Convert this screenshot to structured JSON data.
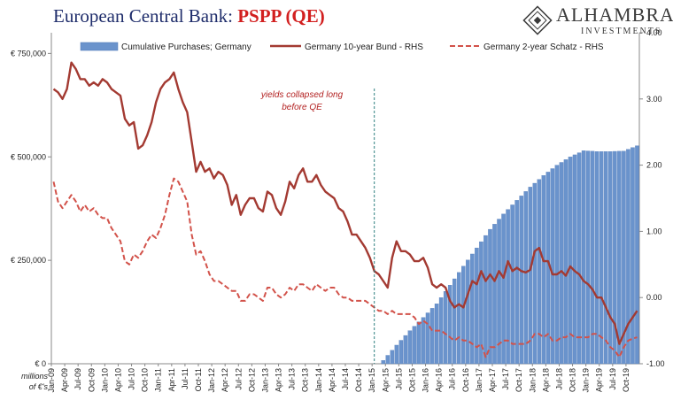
{
  "header": {
    "title_main": "European Central Bank: ",
    "title_accent": "PSPP (QE)",
    "brand_name": "ALHAMBRA",
    "brand_sub": "INVESTMENTS"
  },
  "colors": {
    "bars": "#6a93cc",
    "bars_edge": "#4f79b8",
    "bund": "#a33a32",
    "schatz": "#d2524a",
    "title": "#1f2d6b",
    "accent": "#d21f1f"
  },
  "chart_data": {
    "type": "bar+line",
    "title": "European Central Bank: PSPP (QE)",
    "left_axis": {
      "ticks": [
        {
          "value": 0,
          "label": "€ 0"
        },
        {
          "value": 250000,
          "label": "€ 250,000"
        },
        {
          "value": 500000,
          "label": "€ 500,000"
        },
        {
          "value": 750000,
          "label": "€ 750,000"
        }
      ],
      "ylim": [
        0,
        800000
      ],
      "unit_label": "millions of €'s"
    },
    "right_axis": {
      "ticks": [
        {
          "value": -1.0,
          "label": "-1.00"
        },
        {
          "value": 0.0,
          "label": "0.00"
        },
        {
          "value": 1.0,
          "label": "1.00"
        },
        {
          "value": 2.0,
          "label": "2.00"
        },
        {
          "value": 3.0,
          "label": "3.00"
        },
        {
          "value": 4.0,
          "label": "4.00"
        }
      ],
      "ylim": [
        -1.0,
        4.0
      ]
    },
    "x_axis": {
      "start": "2009-01",
      "end": "2019-12",
      "tick_labels": [
        "Jan-09",
        "Apr-09",
        "Jul-09",
        "Oct-09",
        "Jan-10",
        "Apr-10",
        "Jul-10",
        "Oct-10",
        "Jan-11",
        "Apr-11",
        "Jul-11",
        "Oct-11",
        "Jan-12",
        "Apr-12",
        "Jul-12",
        "Oct-12",
        "Jan-13",
        "Apr-13",
        "Jul-13",
        "Oct-13",
        "Jan-14",
        "Apr-14",
        "Jul-14",
        "Oct-14",
        "Jan-15",
        "Apr-15",
        "Jul-15",
        "Oct-15",
        "Jan-16",
        "Apr-16",
        "Jul-16",
        "Oct-16",
        "Jan-17",
        "Apr-17",
        "Jul-17",
        "Oct-17",
        "Jan-18",
        "Apr-18",
        "Jul-18",
        "Oct-18",
        "Jan-19",
        "Apr-19",
        "Jul-19",
        "Oct-19"
      ]
    },
    "legend": {
      "placement": "top",
      "entries": [
        {
          "label": "Cumulative Purchases; Germany",
          "kind": "bar"
        },
        {
          "label": "Germany 10-year Bund - RHS",
          "kind": "line"
        },
        {
          "label": "Germany 2-year Schatz - RHS",
          "kind": "dashed"
        }
      ]
    },
    "annotation": {
      "lines": [
        "yields collapsed long",
        "before QE"
      ],
      "date": "2015-03"
    },
    "cumulative_purchases": {
      "name": "Cumulative Purchases; Germany",
      "axis": "left",
      "points": [
        [
          "2015-03",
          8000
        ],
        [
          "2015-06",
          45000
        ],
        [
          "2015-09",
          80000
        ],
        [
          "2015-12",
          112000
        ],
        [
          "2016-03",
          145000
        ],
        [
          "2016-06",
          190000
        ],
        [
          "2016-09",
          236000
        ],
        [
          "2016-12",
          280000
        ],
        [
          "2017-03",
          325000
        ],
        [
          "2017-06",
          362000
        ],
        [
          "2017-09",
          395000
        ],
        [
          "2017-12",
          427000
        ],
        [
          "2018-03",
          455000
        ],
        [
          "2018-06",
          480000
        ],
        [
          "2018-09",
          500000
        ],
        [
          "2018-12",
          515000
        ],
        [
          "2019-03",
          513000
        ],
        [
          "2019-06",
          513000
        ],
        [
          "2019-09",
          514000
        ],
        [
          "2019-12",
          527000
        ]
      ]
    },
    "bund_10y": {
      "name": "Germany 10-year Bund - RHS",
      "axis": "right",
      "points": [
        [
          "2009-01",
          3.15
        ],
        [
          "2009-02",
          3.1
        ],
        [
          "2009-03",
          3.0
        ],
        [
          "2009-04",
          3.15
        ],
        [
          "2009-05",
          3.55
        ],
        [
          "2009-06",
          3.45
        ],
        [
          "2009-07",
          3.3
        ],
        [
          "2009-08",
          3.3
        ],
        [
          "2009-09",
          3.2
        ],
        [
          "2009-10",
          3.25
        ],
        [
          "2009-11",
          3.2
        ],
        [
          "2009-12",
          3.3
        ],
        [
          "2010-01",
          3.25
        ],
        [
          "2010-02",
          3.15
        ],
        [
          "2010-03",
          3.1
        ],
        [
          "2010-04",
          3.05
        ],
        [
          "2010-05",
          2.7
        ],
        [
          "2010-06",
          2.6
        ],
        [
          "2010-07",
          2.65
        ],
        [
          "2010-08",
          2.25
        ],
        [
          "2010-09",
          2.3
        ],
        [
          "2010-10",
          2.45
        ],
        [
          "2010-11",
          2.65
        ],
        [
          "2010-12",
          2.95
        ],
        [
          "2011-01",
          3.15
        ],
        [
          "2011-02",
          3.25
        ],
        [
          "2011-03",
          3.3
        ],
        [
          "2011-04",
          3.4
        ],
        [
          "2011-05",
          3.15
        ],
        [
          "2011-06",
          2.95
        ],
        [
          "2011-07",
          2.8
        ],
        [
          "2011-08",
          2.35
        ],
        [
          "2011-09",
          1.9
        ],
        [
          "2011-10",
          2.05
        ],
        [
          "2011-11",
          1.9
        ],
        [
          "2011-12",
          1.95
        ],
        [
          "2012-01",
          1.8
        ],
        [
          "2012-02",
          1.9
        ],
        [
          "2012-03",
          1.85
        ],
        [
          "2012-04",
          1.7
        ],
        [
          "2012-05",
          1.4
        ],
        [
          "2012-06",
          1.55
        ],
        [
          "2012-07",
          1.25
        ],
        [
          "2012-08",
          1.4
        ],
        [
          "2012-09",
          1.5
        ],
        [
          "2012-10",
          1.5
        ],
        [
          "2012-11",
          1.35
        ],
        [
          "2012-12",
          1.3
        ],
        [
          "2013-01",
          1.6
        ],
        [
          "2013-02",
          1.55
        ],
        [
          "2013-03",
          1.35
        ],
        [
          "2013-04",
          1.25
        ],
        [
          "2013-05",
          1.45
        ],
        [
          "2013-06",
          1.75
        ],
        [
          "2013-07",
          1.65
        ],
        [
          "2013-08",
          1.85
        ],
        [
          "2013-09",
          1.95
        ],
        [
          "2013-10",
          1.75
        ],
        [
          "2013-11",
          1.75
        ],
        [
          "2013-12",
          1.85
        ],
        [
          "2014-01",
          1.7
        ],
        [
          "2014-02",
          1.6
        ],
        [
          "2014-03",
          1.55
        ],
        [
          "2014-04",
          1.5
        ],
        [
          "2014-05",
          1.35
        ],
        [
          "2014-06",
          1.3
        ],
        [
          "2014-07",
          1.15
        ],
        [
          "2014-08",
          0.95
        ],
        [
          "2014-09",
          0.95
        ],
        [
          "2014-10",
          0.85
        ],
        [
          "2014-11",
          0.75
        ],
        [
          "2014-12",
          0.6
        ],
        [
          "2015-01",
          0.4
        ],
        [
          "2015-02",
          0.35
        ],
        [
          "2015-03",
          0.25
        ],
        [
          "2015-04",
          0.15
        ],
        [
          "2015-05",
          0.6
        ],
        [
          "2015-06",
          0.85
        ],
        [
          "2015-07",
          0.7
        ],
        [
          "2015-08",
          0.7
        ],
        [
          "2015-09",
          0.65
        ],
        [
          "2015-10",
          0.55
        ],
        [
          "2015-11",
          0.55
        ],
        [
          "2015-12",
          0.6
        ],
        [
          "2016-01",
          0.45
        ],
        [
          "2016-02",
          0.2
        ],
        [
          "2016-03",
          0.15
        ],
        [
          "2016-04",
          0.2
        ],
        [
          "2016-05",
          0.15
        ],
        [
          "2016-06",
          -0.05
        ],
        [
          "2016-07",
          -0.15
        ],
        [
          "2016-08",
          -0.1
        ],
        [
          "2016-09",
          -0.15
        ],
        [
          "2016-10",
          0.05
        ],
        [
          "2016-11",
          0.25
        ],
        [
          "2016-12",
          0.2
        ],
        [
          "2017-01",
          0.4
        ],
        [
          "2017-02",
          0.25
        ],
        [
          "2017-03",
          0.35
        ],
        [
          "2017-04",
          0.25
        ],
        [
          "2017-05",
          0.4
        ],
        [
          "2017-06",
          0.3
        ],
        [
          "2017-07",
          0.55
        ],
        [
          "2017-08",
          0.4
        ],
        [
          "2017-09",
          0.45
        ],
        [
          "2017-10",
          0.4
        ],
        [
          "2017-11",
          0.38
        ],
        [
          "2017-12",
          0.42
        ],
        [
          "2018-01",
          0.7
        ],
        [
          "2018-02",
          0.75
        ],
        [
          "2018-03",
          0.55
        ],
        [
          "2018-04",
          0.55
        ],
        [
          "2018-05",
          0.35
        ],
        [
          "2018-06",
          0.35
        ],
        [
          "2018-07",
          0.4
        ],
        [
          "2018-08",
          0.33
        ],
        [
          "2018-09",
          0.47
        ],
        [
          "2018-10",
          0.4
        ],
        [
          "2018-11",
          0.35
        ],
        [
          "2018-12",
          0.25
        ],
        [
          "2019-01",
          0.2
        ],
        [
          "2019-02",
          0.12
        ],
        [
          "2019-03",
          0.0
        ],
        [
          "2019-04",
          0.0
        ],
        [
          "2019-05",
          -0.15
        ],
        [
          "2019-06",
          -0.3
        ],
        [
          "2019-07",
          -0.4
        ],
        [
          "2019-08",
          -0.7
        ],
        [
          "2019-09",
          -0.55
        ],
        [
          "2019-10",
          -0.4
        ],
        [
          "2019-11",
          -0.3
        ],
        [
          "2019-12",
          -0.2
        ]
      ]
    },
    "schatz_2y": {
      "name": "Germany 2-year Schatz - RHS",
      "axis": "right",
      "points": [
        [
          "2009-01",
          1.75
        ],
        [
          "2009-02",
          1.45
        ],
        [
          "2009-03",
          1.35
        ],
        [
          "2009-04",
          1.45
        ],
        [
          "2009-05",
          1.55
        ],
        [
          "2009-06",
          1.45
        ],
        [
          "2009-07",
          1.3
        ],
        [
          "2009-08",
          1.4
        ],
        [
          "2009-09",
          1.3
        ],
        [
          "2009-10",
          1.35
        ],
        [
          "2009-11",
          1.25
        ],
        [
          "2009-12",
          1.2
        ],
        [
          "2010-01",
          1.2
        ],
        [
          "2010-02",
          1.05
        ],
        [
          "2010-03",
          0.95
        ],
        [
          "2010-04",
          0.85
        ],
        [
          "2010-05",
          0.55
        ],
        [
          "2010-06",
          0.5
        ],
        [
          "2010-07",
          0.65
        ],
        [
          "2010-08",
          0.6
        ],
        [
          "2010-09",
          0.7
        ],
        [
          "2010-10",
          0.85
        ],
        [
          "2010-11",
          0.95
        ],
        [
          "2010-12",
          0.9
        ],
        [
          "2011-01",
          1.05
        ],
        [
          "2011-02",
          1.25
        ],
        [
          "2011-03",
          1.55
        ],
        [
          "2011-04",
          1.8
        ],
        [
          "2011-05",
          1.75
        ],
        [
          "2011-06",
          1.6
        ],
        [
          "2011-07",
          1.45
        ],
        [
          "2011-08",
          0.95
        ],
        [
          "2011-09",
          0.65
        ],
        [
          "2011-10",
          0.7
        ],
        [
          "2011-11",
          0.55
        ],
        [
          "2011-12",
          0.35
        ],
        [
          "2012-01",
          0.25
        ],
        [
          "2012-02",
          0.25
        ],
        [
          "2012-03",
          0.2
        ],
        [
          "2012-04",
          0.15
        ],
        [
          "2012-05",
          0.1
        ],
        [
          "2012-06",
          0.1
        ],
        [
          "2012-07",
          -0.05
        ],
        [
          "2012-08",
          -0.05
        ],
        [
          "2012-09",
          0.05
        ],
        [
          "2012-10",
          0.05
        ],
        [
          "2012-11",
          0.0
        ],
        [
          "2012-12",
          -0.05
        ],
        [
          "2013-01",
          0.15
        ],
        [
          "2013-02",
          0.15
        ],
        [
          "2013-03",
          0.05
        ],
        [
          "2013-04",
          0.0
        ],
        [
          "2013-05",
          0.05
        ],
        [
          "2013-06",
          0.15
        ],
        [
          "2013-07",
          0.1
        ],
        [
          "2013-08",
          0.2
        ],
        [
          "2013-09",
          0.2
        ],
        [
          "2013-10",
          0.15
        ],
        [
          "2013-11",
          0.1
        ],
        [
          "2013-12",
          0.2
        ],
        [
          "2014-01",
          0.15
        ],
        [
          "2014-02",
          0.1
        ],
        [
          "2014-03",
          0.15
        ],
        [
          "2014-04",
          0.15
        ],
        [
          "2014-05",
          0.05
        ],
        [
          "2014-06",
          0.0
        ],
        [
          "2014-07",
          0.0
        ],
        [
          "2014-08",
          -0.05
        ],
        [
          "2014-09",
          -0.05
        ],
        [
          "2014-10",
          -0.05
        ],
        [
          "2014-11",
          -0.05
        ],
        [
          "2014-12",
          -0.1
        ],
        [
          "2015-01",
          -0.15
        ],
        [
          "2015-02",
          -0.2
        ],
        [
          "2015-03",
          -0.2
        ],
        [
          "2015-04",
          -0.25
        ],
        [
          "2015-05",
          -0.2
        ],
        [
          "2015-06",
          -0.25
        ],
        [
          "2015-07",
          -0.25
        ],
        [
          "2015-08",
          -0.25
        ],
        [
          "2015-09",
          -0.25
        ],
        [
          "2015-10",
          -0.3
        ],
        [
          "2015-11",
          -0.4
        ],
        [
          "2015-12",
          -0.35
        ],
        [
          "2016-01",
          -0.4
        ],
        [
          "2016-02",
          -0.5
        ],
        [
          "2016-03",
          -0.5
        ],
        [
          "2016-04",
          -0.5
        ],
        [
          "2016-05",
          -0.55
        ],
        [
          "2016-06",
          -0.6
        ],
        [
          "2016-07",
          -0.65
        ],
        [
          "2016-08",
          -0.6
        ],
        [
          "2016-09",
          -0.65
        ],
        [
          "2016-10",
          -0.65
        ],
        [
          "2016-11",
          -0.7
        ],
        [
          "2016-12",
          -0.75
        ],
        [
          "2017-01",
          -0.7
        ],
        [
          "2017-02",
          -0.9
        ],
        [
          "2017-03",
          -0.75
        ],
        [
          "2017-04",
          -0.75
        ],
        [
          "2017-05",
          -0.7
        ],
        [
          "2017-06",
          -0.65
        ],
        [
          "2017-07",
          -0.65
        ],
        [
          "2017-08",
          -0.7
        ],
        [
          "2017-09",
          -0.7
        ],
        [
          "2017-10",
          -0.7
        ],
        [
          "2017-11",
          -0.7
        ],
        [
          "2017-12",
          -0.65
        ],
        [
          "2018-01",
          -0.55
        ],
        [
          "2018-02",
          -0.55
        ],
        [
          "2018-03",
          -0.6
        ],
        [
          "2018-04",
          -0.55
        ],
        [
          "2018-05",
          -0.65
        ],
        [
          "2018-06",
          -0.65
        ],
        [
          "2018-07",
          -0.6
        ],
        [
          "2018-08",
          -0.6
        ],
        [
          "2018-09",
          -0.55
        ],
        [
          "2018-10",
          -0.6
        ],
        [
          "2018-11",
          -0.6
        ],
        [
          "2018-12",
          -0.6
        ],
        [
          "2019-01",
          -0.6
        ],
        [
          "2019-02",
          -0.55
        ],
        [
          "2019-03",
          -0.55
        ],
        [
          "2019-04",
          -0.6
        ],
        [
          "2019-05",
          -0.65
        ],
        [
          "2019-06",
          -0.75
        ],
        [
          "2019-07",
          -0.8
        ],
        [
          "2019-08",
          -0.9
        ],
        [
          "2019-09",
          -0.75
        ],
        [
          "2019-10",
          -0.65
        ],
        [
          "2019-11",
          -0.62
        ],
        [
          "2019-12",
          -0.6
        ]
      ]
    }
  }
}
